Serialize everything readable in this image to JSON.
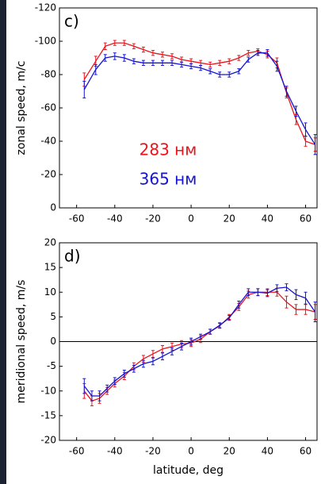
{
  "chart_data": [
    {
      "type": "line",
      "panel_label": "c)",
      "y_label": "zonal speed, m/c",
      "x": [
        -56,
        -50,
        -45,
        -40,
        -35,
        -30,
        -25,
        -20,
        -15,
        -10,
        -5,
        0,
        5,
        10,
        15,
        20,
        25,
        30,
        35,
        40,
        45,
        50,
        55,
        60,
        65
      ],
      "series": [
        {
          "name": "283 нм",
          "color": "#e8141c",
          "values": [
            -77,
            -88,
            -97,
            -99,
            -99,
            -97,
            -95,
            -93,
            -92,
            -91,
            -89,
            -88,
            -87,
            -86,
            -87,
            -88,
            -90,
            -93,
            -94,
            -92,
            -87,
            -69,
            -53,
            -40,
            -38
          ],
          "errors": [
            4,
            3,
            2,
            1.5,
            1.5,
            1.5,
            1.5,
            1.5,
            1.5,
            1.5,
            1.5,
            1.5,
            1.5,
            1.5,
            1.5,
            1.5,
            1.5,
            1.5,
            1.5,
            2,
            3,
            3,
            3,
            3,
            4
          ]
        },
        {
          "name": "365 нм",
          "color": "#1414d2",
          "values": [
            -71,
            -83,
            -90,
            -91,
            -90,
            -88,
            -87,
            -87,
            -87,
            -87,
            -86,
            -85,
            -84,
            -82,
            -80,
            -80,
            -82,
            -89,
            -93,
            -93,
            -85,
            -70,
            -58,
            -47,
            -38
          ],
          "errors": [
            5,
            3,
            2,
            2,
            2,
            1.5,
            1.5,
            1.5,
            1.5,
            1.5,
            1.5,
            1.5,
            1.5,
            1.5,
            1.5,
            1.5,
            1.5,
            1.5,
            1.5,
            2,
            3,
            3,
            3,
            4,
            6
          ]
        }
      ],
      "xlim": [
        -69,
        66
      ],
      "xticks": [
        -60,
        -40,
        -20,
        0,
        20,
        40,
        60
      ],
      "ylim": [
        0,
        -120
      ],
      "yticks": [
        -120,
        -100,
        -80,
        -60,
        -40,
        -20,
        0
      ]
    },
    {
      "type": "line",
      "panel_label": "d)",
      "y_label": "meridional speed, m/s",
      "x_label": "latitude, deg",
      "x": [
        -56,
        -52,
        -48,
        -44,
        -40,
        -35,
        -30,
        -25,
        -20,
        -15,
        -10,
        -5,
        0,
        5,
        10,
        15,
        20,
        25,
        30,
        35,
        40,
        45,
        50,
        55,
        60,
        65
      ],
      "series": [
        {
          "color": "#e8141c",
          "values": [
            -10,
            -12,
            -11.5,
            -10,
            -8.5,
            -7,
            -5,
            -3.5,
            -2.5,
            -1.5,
            -1,
            -0.5,
            -0.3,
            0.5,
            2,
            3.2,
            5,
            7,
            9.5,
            10,
            10,
            10,
            8,
            6.5,
            6.5,
            6
          ],
          "errors": [
            1.5,
            1,
            1,
            0.7,
            0.7,
            0.7,
            0.7,
            0.7,
            0.7,
            0.7,
            0.7,
            0.7,
            0.7,
            0.7,
            0.5,
            0.5,
            0.5,
            0.7,
            0.7,
            0.7,
            0.7,
            0.8,
            1.2,
            1,
            1,
            1.5
          ]
        },
        {
          "color": "#1414d2",
          "values": [
            -9,
            -11,
            -11,
            -9.5,
            -8,
            -6.5,
            -5.5,
            -4.5,
            -4,
            -3,
            -2,
            -1,
            0,
            1,
            2,
            3.3,
            4.8,
            7.5,
            10,
            10,
            9.8,
            10.8,
            11,
            9.5,
            8.8,
            6
          ],
          "errors": [
            1.5,
            1,
            1,
            0.7,
            0.7,
            0.7,
            0.7,
            0.7,
            0.7,
            0.7,
            0.7,
            0.7,
            0.7,
            0.5,
            0.5,
            0.5,
            0.5,
            0.7,
            0.7,
            0.7,
            0.7,
            0.7,
            0.7,
            1,
            1.2,
            2
          ]
        }
      ],
      "xlim": [
        -69,
        66
      ],
      "xticks": [
        -60,
        -40,
        -20,
        0,
        20,
        40,
        60
      ],
      "ylim": [
        -20,
        20
      ],
      "yticks": [
        -20,
        -15,
        -10,
        -5,
        0,
        5,
        10,
        15,
        20
      ],
      "zero_line": true
    }
  ]
}
